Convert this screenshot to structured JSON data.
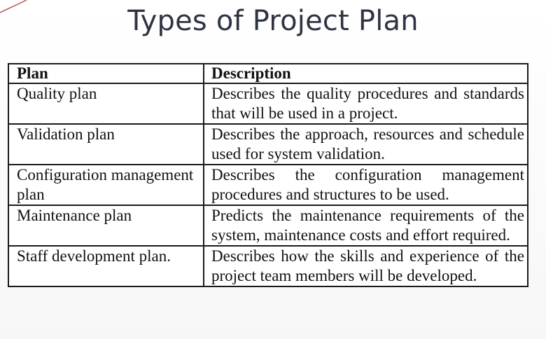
{
  "slide": {
    "title": "Types of Project Plan"
  },
  "table": {
    "headers": {
      "plan": "Plan",
      "description": "Description"
    },
    "rows": [
      {
        "plan": "Quality plan",
        "description": "Describes the quality procedures and standards that will be used in a project."
      },
      {
        "plan": "Validation plan",
        "description": "Describes the approach, resources and schedule used for system validation."
      },
      {
        "plan": "Configuration management plan",
        "description": "Describes the configuration management procedures and structures to be used."
      },
      {
        "plan": "Maintenance plan",
        "description": "Predicts the maintenance requirements of the system, maintenance costs and effort required."
      },
      {
        "plan": "Staff development plan.",
        "description": "Describes how the skills and experience of the project team members will be developed."
      }
    ]
  },
  "colors": {
    "title": "#2f3444",
    "text": "#111111",
    "border": "#1a1a1a",
    "accent_swoosh": "#c0504d"
  }
}
